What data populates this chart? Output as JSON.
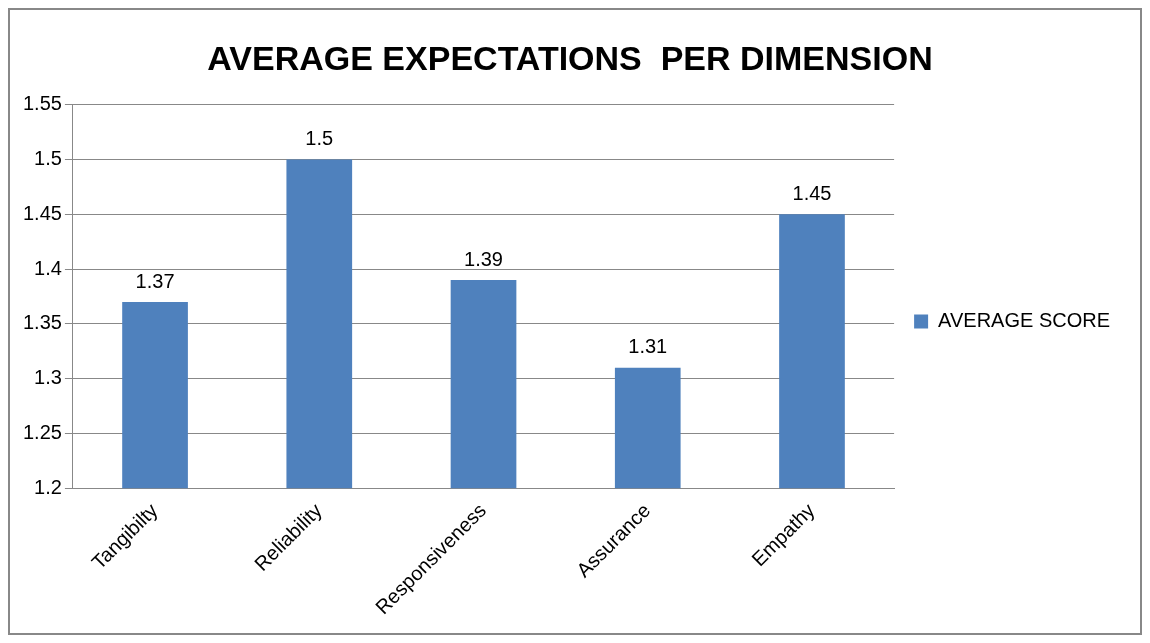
{
  "chart_data": {
    "type": "bar",
    "title": "AVERAGE EXPECTATIONS  PER DIMENSION",
    "categories": [
      "Tangibilty",
      "Reliability",
      "Responsiveness",
      "Assurance",
      "Empathy"
    ],
    "series": [
      {
        "name": "AVERAGE SCORE",
        "color": "#4f81bd",
        "values": [
          1.37,
          1.5,
          1.39,
          1.31,
          1.45
        ]
      }
    ],
    "ylim": [
      1.2,
      1.55
    ],
    "yticks": [
      1.2,
      1.25,
      1.3,
      1.35,
      1.4,
      1.45,
      1.5,
      1.55
    ],
    "grid": "y",
    "legend": "right",
    "data_labels": true
  }
}
